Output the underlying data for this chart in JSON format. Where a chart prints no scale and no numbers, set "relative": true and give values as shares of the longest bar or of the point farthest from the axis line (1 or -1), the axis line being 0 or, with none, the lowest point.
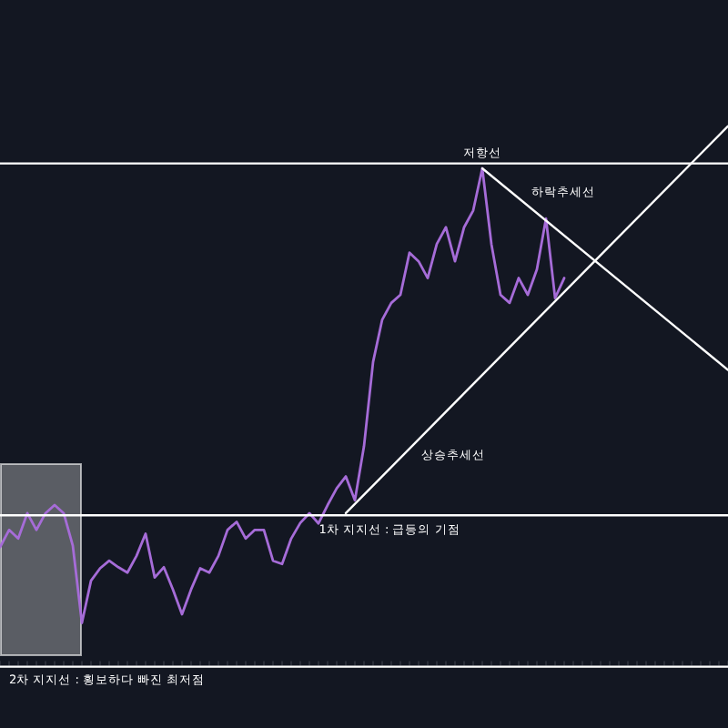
{
  "chart_data": {
    "type": "line",
    "relative": true,
    "legend": false,
    "grid": false,
    "marker": "none",
    "line_style": "solid",
    "categories": [
      null,
      null,
      null,
      null,
      null,
      null,
      null,
      null,
      null,
      null,
      null,
      null,
      null,
      null,
      null,
      null,
      null,
      null,
      null,
      null,
      null,
      null,
      null,
      null,
      null,
      null,
      null,
      null,
      null,
      null,
      null,
      null,
      null,
      null,
      null,
      null,
      null,
      null,
      null,
      null,
      null,
      null,
      null,
      null,
      null,
      null,
      null,
      null,
      null,
      null,
      null,
      null,
      null,
      null,
      null,
      null,
      null,
      null,
      null,
      null,
      null,
      null,
      null,
      null,
      null,
      null,
      null,
      null,
      null,
      null,
      null,
      null,
      null,
      null,
      null,
      null,
      null,
      null,
      null,
      null,
      null
    ],
    "series": [
      {
        "color": "#a66cd8",
        "values": [
          0.221,
          0.253,
          0.237,
          0.284,
          0.253,
          0.284,
          0.299,
          0.284,
          0.224,
          0.081,
          0.159,
          0.182,
          0.196,
          0.184,
          0.174,
          0.205,
          0.246,
          0.165,
          0.184,
          0.143,
          0.097,
          0.143,
          0.182,
          0.174,
          0.205,
          0.253,
          0.268,
          0.237,
          0.253,
          0.253,
          0.196,
          0.19,
          0.237,
          0.266,
          0.284,
          0.265,
          0.299,
          0.33,
          0.352,
          0.308,
          0.408,
          0.564,
          0.642,
          0.673,
          0.688,
          0.766,
          0.75,
          0.719,
          0.782,
          0.813,
          0.75,
          0.813,
          0.844,
          0.922,
          0.782,
          0.688,
          0.673,
          0.719,
          0.688,
          0.735,
          0.829,
          0.682,
          0.719,
          null,
          null,
          null,
          null,
          null,
          null,
          null,
          null,
          null,
          null,
          null,
          null,
          null,
          null,
          null,
          null,
          null,
          null
        ]
      },
      {
        "name": "상승추세선",
        "color": "#ffffff",
        "values": [
          null,
          null,
          null,
          null,
          null,
          null,
          null,
          null,
          null,
          null,
          null,
          null,
          null,
          null,
          null,
          null,
          null,
          null,
          null,
          null,
          null,
          null,
          null,
          null,
          null,
          null,
          null,
          null,
          null,
          null,
          null,
          null,
          null,
          null,
          null,
          null,
          null,
          null,
          0.284,
          null,
          null,
          null,
          null,
          null,
          null,
          null,
          null,
          null,
          null,
          null,
          null,
          null,
          null,
          null,
          null,
          null,
          null,
          null,
          null,
          null,
          null,
          null,
          null,
          null,
          null,
          null,
          null,
          null,
          null,
          null,
          null,
          null,
          null,
          null,
          null,
          null,
          null,
          null,
          null,
          null,
          1
        ]
      },
      {
        "name": "하락추세선",
        "color": "#ffffff",
        "values": [
          null,
          null,
          null,
          null,
          null,
          null,
          null,
          null,
          null,
          null,
          null,
          null,
          null,
          null,
          null,
          null,
          null,
          null,
          null,
          null,
          null,
          null,
          null,
          null,
          null,
          null,
          null,
          null,
          null,
          null,
          null,
          null,
          null,
          null,
          null,
          null,
          null,
          null,
          null,
          null,
          null,
          null,
          null,
          null,
          null,
          null,
          null,
          null,
          null,
          null,
          null,
          null,
          null,
          0.922,
          null,
          null,
          null,
          null,
          null,
          null,
          null,
          null,
          null,
          null,
          null,
          null,
          null,
          null,
          null,
          null,
          null,
          null,
          null,
          null,
          null,
          null,
          null,
          null,
          null,
          null,
          0.549
        ]
      },
      {
        "name": "저항선",
        "color": "#ffffff",
        "values": [
          0.931,
          0.931,
          0.931,
          0.931,
          0.931,
          0.931,
          0.931,
          0.931,
          0.931,
          0.931,
          0.931,
          0.931,
          0.931,
          0.931,
          0.931,
          0.931,
          0.931,
          0.931,
          0.931,
          0.931,
          0.931,
          0.931,
          0.931,
          0.931,
          0.931,
          0.931,
          0.931,
          0.931,
          0.931,
          0.931,
          0.931,
          0.931,
          0.931,
          0.931,
          0.931,
          0.931,
          0.931,
          0.931,
          0.931,
          0.931,
          0.931,
          0.931,
          0.931,
          0.931,
          0.931,
          0.931,
          0.931,
          0.931,
          0.931,
          0.931,
          0.931,
          0.931,
          0.931,
          0.931,
          0.931,
          0.931,
          0.931,
          0.931,
          0.931,
          0.931,
          0.931,
          0.931,
          0.931,
          0.931,
          0.931,
          0.931,
          0.931,
          0.931,
          0.931,
          0.931,
          0.931,
          0.931,
          0.931,
          0.931,
          0.931,
          0.931,
          0.931,
          0.931,
          0.931,
          0.931,
          0.931
        ]
      },
      {
        "name": "1차 지지선 : 급등의 기점",
        "color": "#ffffff",
        "values": [
          0.28,
          0.28,
          0.28,
          0.28,
          0.28,
          0.28,
          0.28,
          0.28,
          0.28,
          0.28,
          0.28,
          0.28,
          0.28,
          0.28,
          0.28,
          0.28,
          0.28,
          0.28,
          0.28,
          0.28,
          0.28,
          0.28,
          0.28,
          0.28,
          0.28,
          0.28,
          0.28,
          0.28,
          0.28,
          0.28,
          0.28,
          0.28,
          0.28,
          0.28,
          0.28,
          0.28,
          0.28,
          0.28,
          0.28,
          0.28,
          0.28,
          0.28,
          0.28,
          0.28,
          0.28,
          0.28,
          0.28,
          0.28,
          0.28,
          0.28,
          0.28,
          0.28,
          0.28,
          0.28,
          0.28,
          0.28,
          0.28,
          0.28,
          0.28,
          0.28,
          0.28,
          0.28,
          0.28,
          0.28,
          0.28,
          0.28,
          0.28,
          0.28,
          0.28,
          0.28,
          0.28,
          0.28,
          0.28,
          0.28,
          0.28,
          0.28,
          0.28,
          0.28,
          0.28,
          0.28,
          0.28
        ]
      },
      {
        "name": "2차 지지선 : 횡보하다 빠진 최저점",
        "color": "#ffffff",
        "values": [
          0,
          0,
          0,
          0,
          0,
          0,
          0,
          0,
          0,
          0,
          0,
          0,
          0,
          0,
          0,
          0,
          0,
          0,
          0,
          0,
          0,
          0,
          0,
          0,
          0,
          0,
          0,
          0,
          0,
          0,
          0,
          0,
          0,
          0,
          0,
          0,
          0,
          0,
          0,
          0,
          0,
          0,
          0,
          0,
          0,
          0,
          0,
          0,
          0,
          0,
          0,
          0,
          0,
          0,
          0,
          0,
          0,
          0,
          0,
          0,
          0,
          0,
          0,
          0,
          0,
          0,
          0,
          0,
          0,
          0,
          0,
          0,
          0,
          0,
          0,
          0,
          0,
          0,
          0,
          0,
          0
        ]
      }
    ]
  }
}
